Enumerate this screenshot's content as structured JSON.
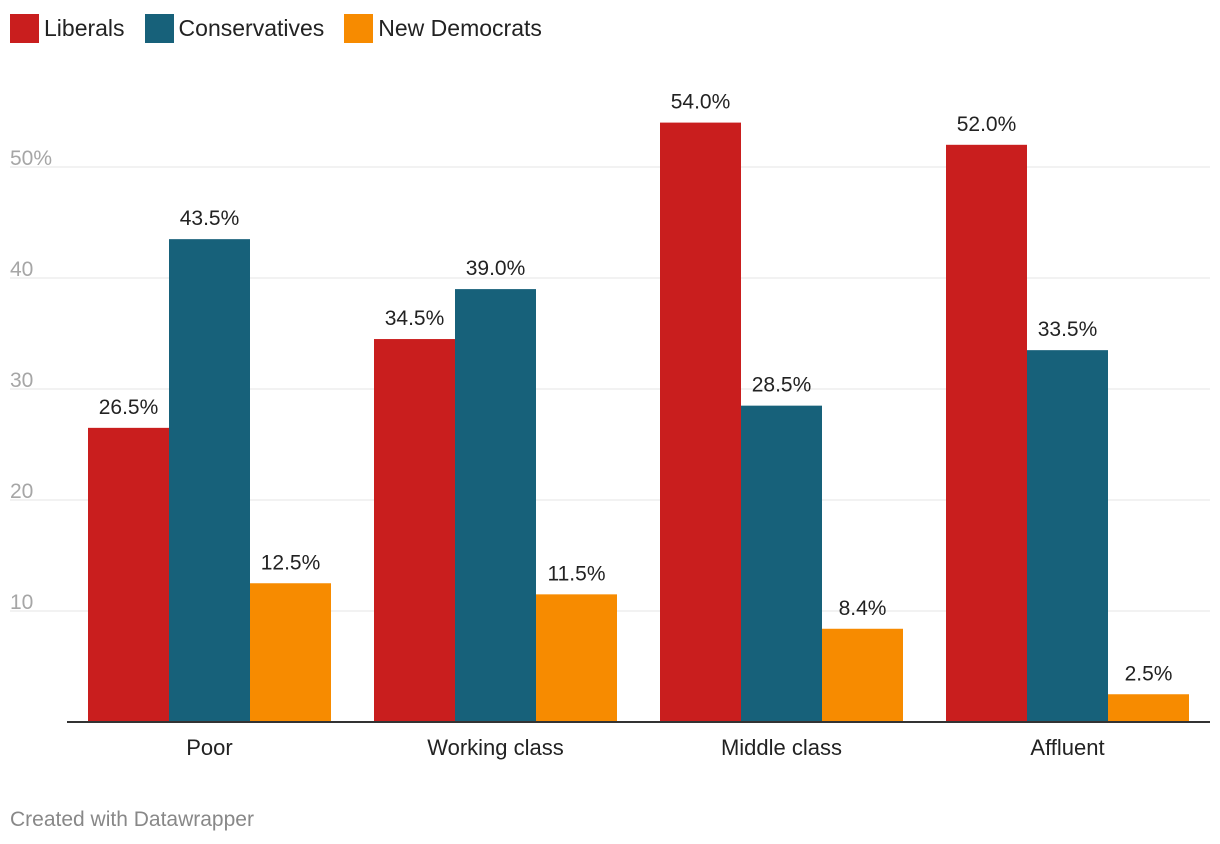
{
  "chart_data": {
    "type": "bar",
    "categories": [
      "Poor",
      "Working class",
      "Middle class",
      "Affluent"
    ],
    "series": [
      {
        "name": "Liberals",
        "color": "#c91e1e",
        "values": [
          26.5,
          34.5,
          54.0,
          52.0
        ],
        "labels": [
          "26.5%",
          "34.5%",
          "54.0%",
          "52.0%"
        ]
      },
      {
        "name": "Conservatives",
        "color": "#17617a",
        "values": [
          43.5,
          39.0,
          28.5,
          33.5
        ],
        "labels": [
          "43.5%",
          "39.0%",
          "28.5%",
          "33.5%"
        ]
      },
      {
        "name": "New Democrats",
        "color": "#f78b00",
        "values": [
          12.5,
          11.5,
          8.4,
          2.5
        ],
        "labels": [
          "12.5%",
          "11.5%",
          "8.4%",
          "2.5%"
        ]
      }
    ],
    "y_ticks": [
      10,
      20,
      30,
      40,
      50
    ],
    "y_tick_labels": [
      "10",
      "20",
      "30",
      "40",
      "50%"
    ],
    "ylim": [
      0,
      55
    ],
    "grid": true,
    "legend_position": "top-left"
  },
  "footer": {
    "credit": "Created with Datawrapper"
  }
}
